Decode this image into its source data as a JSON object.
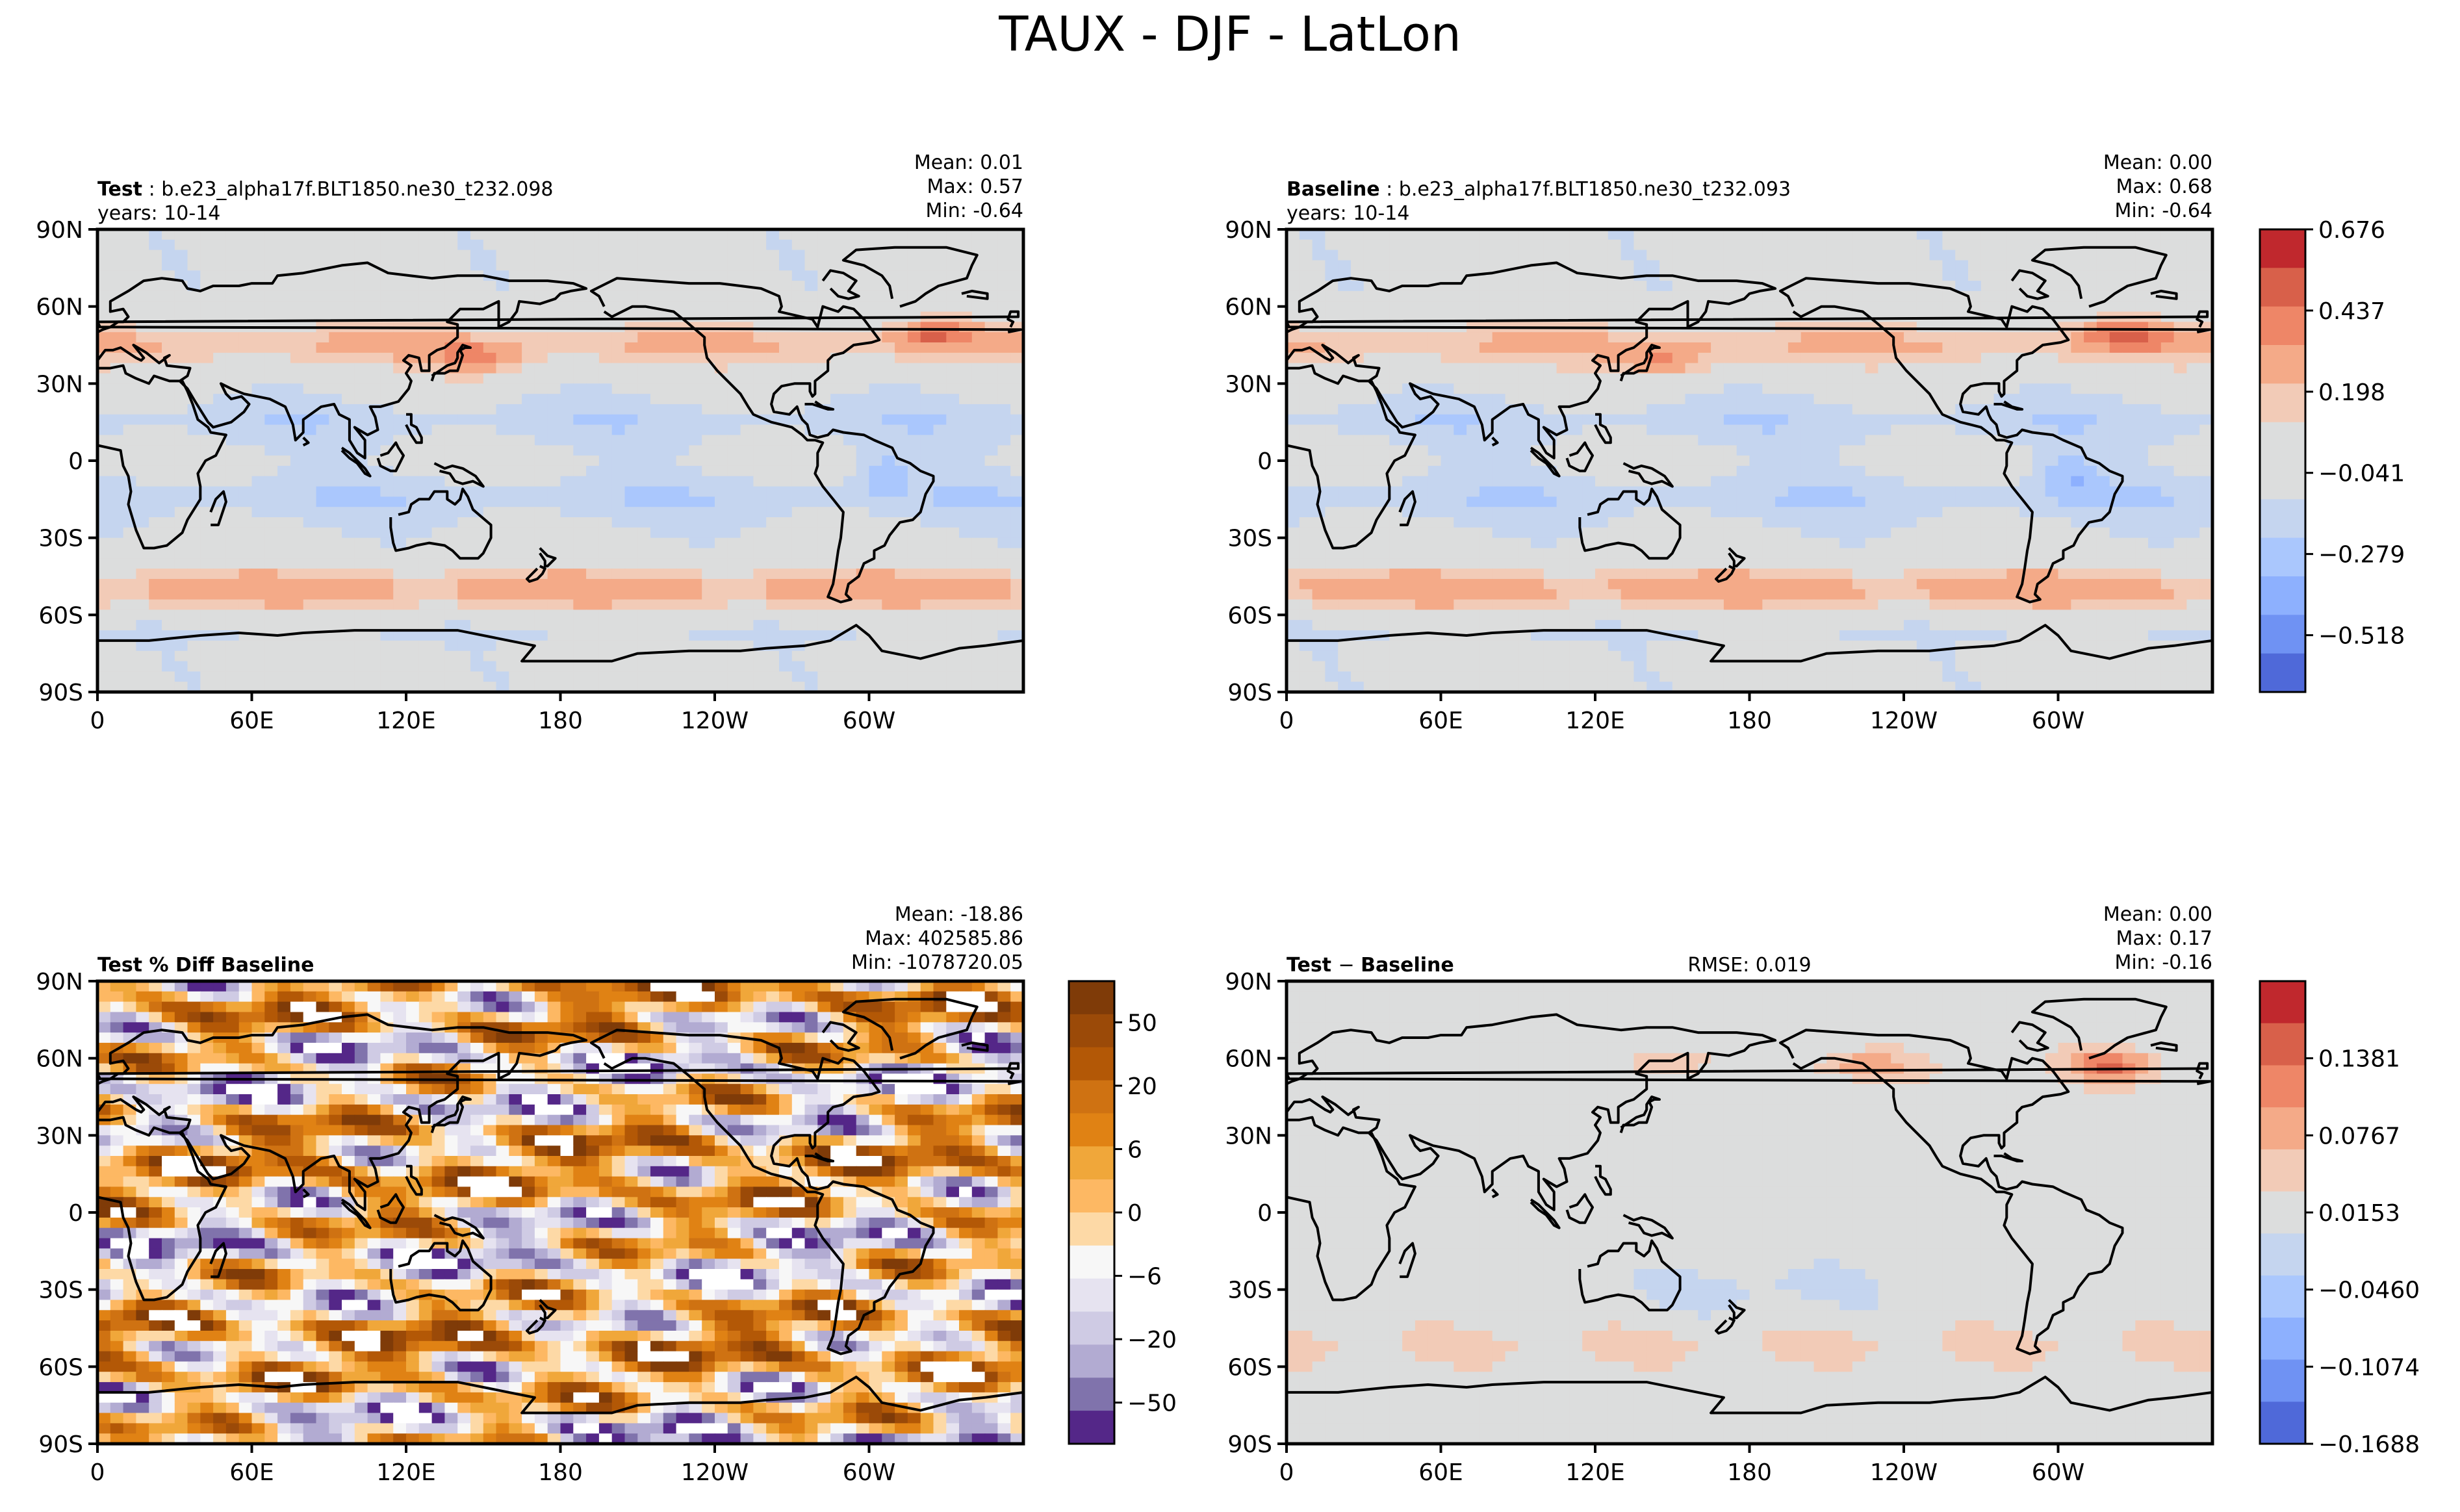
{
  "figure": {
    "title": "TAUX - DJF - LatLon"
  },
  "chart_data": [
    {
      "id": "test",
      "type": "heatmap",
      "title_bold": "Test",
      "title_rest": ": b.e23_alpha17f.BLT1850.ne30_t232.098",
      "subtitle": "years: 10-14",
      "stats": [
        "Mean:  0.01",
        "Max:  0.57",
        "Min: -0.64"
      ],
      "x_ticks": [
        "0",
        "60E",
        "120E",
        "180",
        "120W",
        "60W"
      ],
      "y_ticks": [
        "90N",
        "60N",
        "30N",
        "0",
        "30S",
        "60S",
        "90S"
      ],
      "xlim": [
        0,
        360
      ],
      "ylim": [
        -90,
        90
      ]
    },
    {
      "id": "baseline",
      "type": "heatmap",
      "title_bold": "Baseline",
      "title_rest": ": b.e23_alpha17f.BLT1850.ne30_t232.093",
      "subtitle": "years: 10-14",
      "stats": [
        "Mean:  0.00",
        "Max:  0.68",
        "Min: -0.64"
      ],
      "x_ticks": [
        "0",
        "60E",
        "120E",
        "180",
        "120W",
        "60W"
      ],
      "y_ticks": [
        "90N",
        "60N",
        "30N",
        "0",
        "30S",
        "60S",
        "90S"
      ],
      "xlim": [
        0,
        360
      ],
      "ylim": [
        -90,
        90
      ],
      "colorbar": {
        "ticks": [
          "0.676",
          "0.437",
          "0.198",
          "−0.041",
          "−0.279",
          "−0.518"
        ],
        "levels": 12,
        "colors": [
          "#c0282d",
          "#d8604a",
          "#ee8667",
          "#f4aa88",
          "#f2cbb7",
          "#dcdddd",
          "#dcdddd",
          "#c5d5ef",
          "#aac7fd",
          "#8db0fe",
          "#6f92f3",
          "#4f69d9"
        ]
      }
    },
    {
      "id": "pctdiff",
      "type": "heatmap",
      "title_bold": "Test % Diff Baseline",
      "stats": [
        "Mean: -18.86",
        "Max: 402585.86",
        "Min: -1078720.05"
      ],
      "x_ticks": [
        "0",
        "60E",
        "120E",
        "180",
        "120W",
        "60W"
      ],
      "y_ticks": [
        "90N",
        "60N",
        "30N",
        "0",
        "30S",
        "60S",
        "90S"
      ],
      "xlim": [
        0,
        360
      ],
      "ylim": [
        -90,
        90
      ],
      "colorbar": {
        "ticks": [
          "50",
          "20",
          "6",
          "0",
          "−6",
          "−20",
          "−50"
        ],
        "levels": 14,
        "colors": [
          "#7f3b08",
          "#9b4a08",
          "#b35806",
          "#cf7212",
          "#e08214",
          "#f0a73a",
          "#fdb863",
          "#fdd9a6",
          "#f7f7f7",
          "#e6e3f0",
          "#cfcbe4",
          "#b2abd2",
          "#8073ac",
          "#542788"
        ]
      }
    },
    {
      "id": "diff",
      "type": "heatmap",
      "title_bold": "Test",
      "title_minus": "−",
      "title_rest": "Baseline",
      "rmse": "RMSE: 0.019",
      "stats": [
        "Mean:  0.00",
        "Max:  0.17",
        "Min: -0.16"
      ],
      "x_ticks": [
        "0",
        "60E",
        "120E",
        "180",
        "120W",
        "60W"
      ],
      "y_ticks": [
        "90N",
        "60N",
        "30N",
        "0",
        "30S",
        "60S",
        "90S"
      ],
      "xlim": [
        0,
        360
      ],
      "ylim": [
        -90,
        90
      ],
      "colorbar": {
        "ticks": [
          "0.1381",
          "0.0767",
          "0.0153",
          "−0.0460",
          "−0.1074",
          "−0.1688"
        ],
        "levels": 11,
        "colors": [
          "#c0282d",
          "#d8604a",
          "#ee8667",
          "#f4aa88",
          "#f2cbb7",
          "#dcdddd",
          "#c5d5ef",
          "#aac7fd",
          "#8db0fe",
          "#6f92f3",
          "#4f69d9"
        ]
      }
    }
  ]
}
